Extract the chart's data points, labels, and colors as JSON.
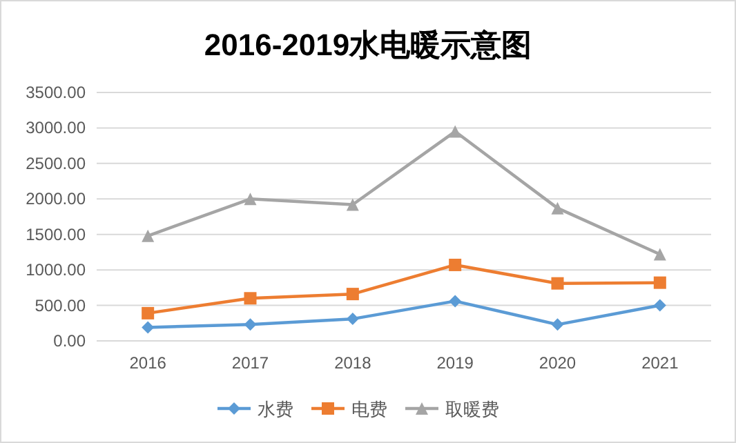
{
  "chart_data": {
    "type": "line",
    "title": "2016-2019水电暖示意图",
    "categories": [
      "2016",
      "2017",
      "2018",
      "2019",
      "2020",
      "2021"
    ],
    "series": [
      {
        "name": "水费",
        "color": "#5b9bd5",
        "marker": "diamond",
        "values": [
          190,
          230,
          310,
          560,
          230,
          500
        ]
      },
      {
        "name": "电费",
        "color": "#ed7d31",
        "marker": "square",
        "values": [
          390,
          600,
          660,
          1070,
          810,
          820
        ]
      },
      {
        "name": "取暖费",
        "color": "#a5a5a5",
        "marker": "triangle",
        "values": [
          1480,
          2000,
          1920,
          2950,
          1870,
          1220
        ]
      }
    ],
    "ylim": [
      0,
      3500
    ],
    "yticks": [
      {
        "value": 0,
        "label": "0.00"
      },
      {
        "value": 500,
        "label": "500.00"
      },
      {
        "value": 1000,
        "label": "1000.00"
      },
      {
        "value": 1500,
        "label": "1500.00"
      },
      {
        "value": 2000,
        "label": "2000.00"
      },
      {
        "value": 2500,
        "label": "2500.00"
      },
      {
        "value": 3000,
        "label": "3000.00"
      },
      {
        "value": 3500,
        "label": "3500.00"
      }
    ],
    "grid": "y",
    "legend": "bottom",
    "line_style": "solid"
  }
}
